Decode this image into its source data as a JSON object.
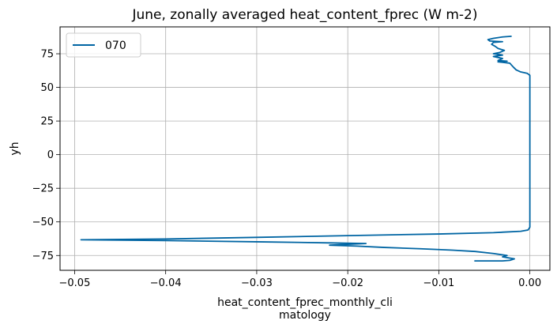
{
  "chart_data": {
    "type": "line",
    "title": "June, zonally averaged heat_content_fprec (W m-2)",
    "xlabel_lines": [
      "heat_content_fprec_monthly_cli",
      "matology"
    ],
    "ylabel": "yh",
    "xlim": [
      -0.0516,
      0.0022
    ],
    "ylim": [
      -86,
      95
    ],
    "xticks": [
      -0.05,
      -0.04,
      -0.03,
      -0.02,
      -0.01,
      0.0
    ],
    "xtick_labels": [
      "−0.05",
      "−0.04",
      "−0.03",
      "−0.02",
      "−0.01",
      "0.00"
    ],
    "yticks": [
      -75,
      -50,
      -25,
      0,
      25,
      50,
      75
    ],
    "ytick_labels": [
      "−75",
      "−50",
      "−25",
      "0",
      "25",
      "50",
      "75"
    ],
    "grid": true,
    "legend_position": "upper-left",
    "series": [
      {
        "name": "070",
        "color": "#0065a3",
        "points": [
          [
            -0.0061,
            -79.0
          ],
          [
            -0.004,
            -79.0
          ],
          [
            -0.003,
            -79.0
          ],
          [
            -0.0022,
            -78.6
          ],
          [
            -0.0017,
            -77.5
          ],
          [
            -0.003,
            -76.0
          ],
          [
            -0.0025,
            -75.0
          ],
          [
            -0.004,
            -73.5
          ],
          [
            -0.006,
            -72.0
          ],
          [
            -0.0085,
            -71.0
          ],
          [
            -0.012,
            -70.0
          ],
          [
            -0.016,
            -69.0
          ],
          [
            -0.019,
            -68.0
          ],
          [
            -0.022,
            -67.3
          ],
          [
            -0.02,
            -66.7
          ],
          [
            -0.018,
            -66.1
          ],
          [
            -0.022,
            -65.6
          ],
          [
            -0.03,
            -64.8
          ],
          [
            -0.04,
            -63.9
          ],
          [
            -0.0493,
            -63.3
          ],
          [
            -0.04,
            -62.7
          ],
          [
            -0.03,
            -61.5
          ],
          [
            -0.02,
            -60.2
          ],
          [
            -0.01,
            -59.0
          ],
          [
            -0.004,
            -58.0
          ],
          [
            -0.001,
            -57.0
          ],
          [
            -0.0002,
            -56.0
          ],
          [
            0.0,
            -54.0
          ],
          [
            0.0,
            -30.0
          ],
          [
            0.0,
            0.0
          ],
          [
            0.0,
            30.0
          ],
          [
            0.0,
            55.0
          ],
          [
            0.0,
            59.0
          ],
          [
            -0.0003,
            60.5
          ],
          [
            -0.001,
            61.5
          ],
          [
            -0.0015,
            63.0
          ],
          [
            -0.0018,
            65.0
          ],
          [
            -0.0022,
            68.0
          ],
          [
            -0.0035,
            69.0
          ],
          [
            -0.0025,
            69.5
          ],
          [
            -0.0035,
            70.0
          ],
          [
            -0.003,
            71.5
          ],
          [
            -0.004,
            73.0
          ],
          [
            -0.003,
            74.0
          ],
          [
            -0.004,
            75.0
          ],
          [
            -0.0033,
            76.0
          ],
          [
            -0.0028,
            77.5
          ],
          [
            -0.0035,
            79.0
          ],
          [
            -0.0038,
            80.5
          ],
          [
            -0.0042,
            82.0
          ],
          [
            -0.004,
            83.5
          ],
          [
            -0.003,
            84.0
          ],
          [
            -0.0044,
            84.5
          ],
          [
            -0.0046,
            85.5
          ],
          [
            -0.004,
            86.5
          ],
          [
            -0.003,
            87.5
          ],
          [
            -0.002,
            88.0
          ]
        ]
      }
    ]
  }
}
